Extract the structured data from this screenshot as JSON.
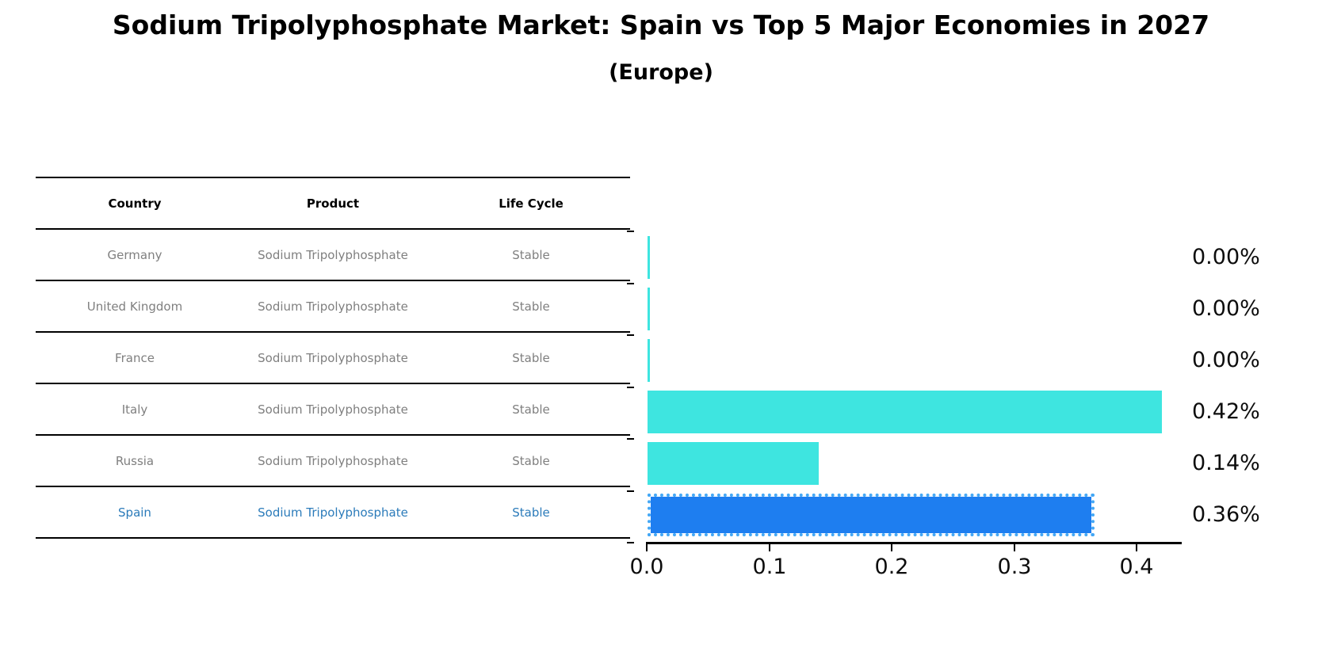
{
  "title": "Sodium Tripolyphosphate Market: Spain vs Top 5 Major Economies in 2027",
  "subtitle": "(Europe)",
  "table": {
    "columns": [
      "Country",
      "Product",
      "Life Cycle"
    ],
    "rows": [
      {
        "country": "Germany",
        "product": "Sodium Tripolyphosphate",
        "life_cycle": "Stable",
        "highlight": false
      },
      {
        "country": "United Kingdom",
        "product": "Sodium Tripolyphosphate",
        "life_cycle": "Stable",
        "highlight": false
      },
      {
        "country": "France",
        "product": "Sodium Tripolyphosphate",
        "life_cycle": "Stable",
        "highlight": false
      },
      {
        "country": "Italy",
        "product": "Sodium Tripolyphosphate",
        "life_cycle": "Stable",
        "highlight": false
      },
      {
        "country": "Russia",
        "product": "Sodium Tripolyphosphate",
        "life_cycle": "Stable",
        "highlight": false
      },
      {
        "country": "Spain",
        "product": "Sodium Tripolyphosphate",
        "life_cycle": "Stable",
        "highlight": true
      }
    ]
  },
  "chart_data": {
    "type": "bar",
    "orientation": "horizontal",
    "title": "Sodium Tripolyphosphate Market: Spain vs Top 5 Major Economies in 2027",
    "subtitle": "(Europe)",
    "categories": [
      "Germany",
      "United Kingdom",
      "France",
      "Italy",
      "Russia",
      "Spain"
    ],
    "values": [
      0.0,
      0.0,
      0.0,
      0.42,
      0.14,
      0.365
    ],
    "value_labels": [
      "0.00%",
      "0.00%",
      "0.00%",
      "0.42%",
      "0.14%",
      "0.36%"
    ],
    "x_ticks": [
      0.0,
      0.1,
      0.2,
      0.3,
      0.4
    ],
    "x_tick_labels": [
      "0.0",
      "0.1",
      "0.2",
      "0.3",
      "0.4"
    ],
    "xlim": [
      0,
      0.4375
    ],
    "grid": false,
    "legend": false,
    "highlight_index": 5,
    "colors": {
      "bar_normal": "#3ee5e0",
      "bar_highlight": "#1e7ef0",
      "bar_highlight_border": "#43a7f5",
      "highlight_text": "#2b7bba",
      "cell_text": "#7f7f7f",
      "axis": "#000000"
    }
  }
}
